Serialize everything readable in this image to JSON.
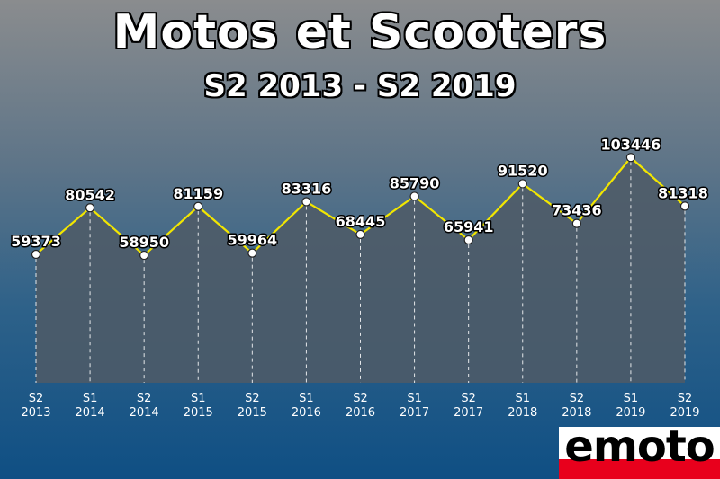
{
  "title": "Motos et Scooters",
  "subtitle": "S2 2013 - S2 2019",
  "logo_text": "emoto",
  "colors": {
    "line": "#f2e600",
    "area": "#4f5a66",
    "point": "#ffffff",
    "logo_red": "#e8001c"
  },
  "chart_data": {
    "type": "line",
    "title": "Motos et Scooters",
    "subtitle": "S2 2013 - S2 2019",
    "categories": [
      [
        "S2",
        "2013"
      ],
      [
        "S1",
        "2014"
      ],
      [
        "S2",
        "2014"
      ],
      [
        "S1",
        "2015"
      ],
      [
        "S2",
        "2015"
      ],
      [
        "S1",
        "2016"
      ],
      [
        "S2",
        "2016"
      ],
      [
        "S1",
        "2017"
      ],
      [
        "S2",
        "2017"
      ],
      [
        "S1",
        "2018"
      ],
      [
        "S2",
        "2018"
      ],
      [
        "S1",
        "2019"
      ],
      [
        "S2",
        "2019"
      ]
    ],
    "series": [
      {
        "values": [
          59373,
          80542,
          58950,
          81159,
          59964,
          83316,
          68445,
          85790,
          65941,
          91520,
          73436,
          103446,
          81318
        ]
      }
    ],
    "data_labels": [
      "59373",
      "80542",
      "58950",
      "81159",
      "59964",
      "83316",
      "68445",
      "85790",
      "65941",
      "91520",
      "73436",
      "103446",
      "81318"
    ],
    "grid": false,
    "legend": false
  }
}
